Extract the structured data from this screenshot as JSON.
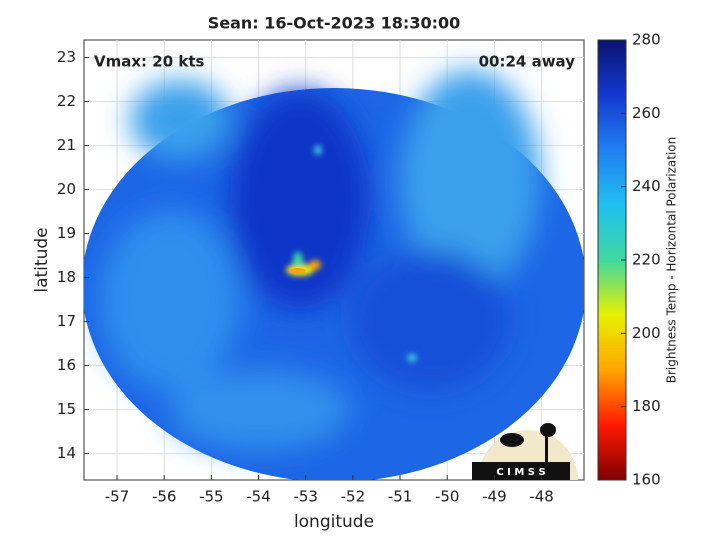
{
  "chart_data": {
    "type": "image",
    "title": "Sean: 16-Oct-2023 18:30:00",
    "annotations": [
      "Vmax: 20 kts",
      "00:24 away"
    ],
    "x_label": "longitude",
    "y_label": "latitude",
    "xlim": [
      -57.7,
      -47.1
    ],
    "xticks": [
      -57,
      -56,
      -55,
      -54,
      -53,
      -52,
      -51,
      -50,
      -49,
      -48
    ],
    "ylim": [
      13.4,
      23.4
    ],
    "yticks": [
      14,
      15,
      16,
      17,
      18,
      19,
      20,
      21,
      22,
      23
    ],
    "grid": true,
    "colorbar": {
      "label": "Brightness Temp - Horizontal Polarization",
      "clim": [
        160,
        280
      ],
      "ticks": [
        160,
        180,
        200,
        220,
        240,
        260,
        280
      ],
      "colormap": [
        "#7f0000",
        "#ff1a00",
        "#ffa500",
        "#e8f000",
        "#40d8a0",
        "#20c0f0",
        "#2080f0",
        "#1438d0",
        "#0a1470"
      ]
    },
    "logo": "C I M S S"
  }
}
